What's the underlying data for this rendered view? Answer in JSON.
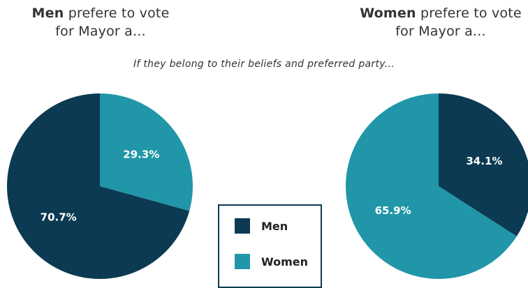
{
  "titles": {
    "men": {
      "bold": "Men",
      "rest": "prefere to vote",
      "line2": "for Mayor a..."
    },
    "women": {
      "bold": "Women",
      "rest": "prefere to vote",
      "line2": "for Mayor a..."
    }
  },
  "subtitle": "If they belong to their beliefs and preferred party...",
  "colors": {
    "men": "#0b3a52",
    "women": "#2196a8"
  },
  "legend": [
    {
      "label": "Men",
      "color": "#0b3a52"
    },
    {
      "label": "Women",
      "color": "#2196a8"
    }
  ],
  "chart_data": [
    {
      "type": "pie",
      "title": "Men prefere to vote for Mayor a...",
      "slices": [
        {
          "label": "Women",
          "value": 29.3,
          "display": "29.3%",
          "color": "#2196a8"
        },
        {
          "label": "Men",
          "value": 70.7,
          "display": "70.7%",
          "color": "#0b3a52"
        }
      ]
    },
    {
      "type": "pie",
      "title": "Women prefere to vote for Mayor a...",
      "slices": [
        {
          "label": "Men",
          "value": 34.1,
          "display": "34.1%",
          "color": "#0b3a52"
        },
        {
          "label": "Women",
          "value": 65.9,
          "display": "65.9%",
          "color": "#2196a8"
        }
      ]
    }
  ]
}
